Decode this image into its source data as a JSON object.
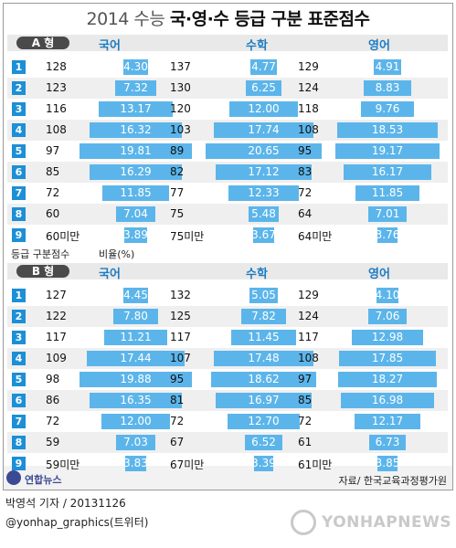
{
  "title": {
    "light": "2014 수능 ",
    "bold": "국·영·수 등급 구분 표준점수"
  },
  "chart_data": {
    "type": "bar",
    "title": "2014 수능 국·영·수 등급 구분 표준점수",
    "grades": [
      "1",
      "2",
      "3",
      "4",
      "5",
      "6",
      "7",
      "8",
      "9"
    ],
    "subjects": [
      "국어",
      "수학",
      "영어"
    ],
    "axis_labels": {
      "score": "등급 구분점수",
      "ratio": "비율(%)"
    },
    "sections": [
      {
        "name": "A 형",
        "subjects": [
          {
            "name": "국어",
            "scores": [
              "128",
              "123",
              "116",
              "108",
              "97",
              "85",
              "72",
              "60",
              "60미만"
            ],
            "values": [
              4.3,
              7.32,
              13.17,
              16.32,
              19.81,
              16.29,
              11.85,
              7.04,
              3.89
            ]
          },
          {
            "name": "수학",
            "scores": [
              "137",
              "130",
              "120",
              "103",
              "89",
              "82",
              "77",
              "75",
              "75미만"
            ],
            "values": [
              4.77,
              6.25,
              12.0,
              17.74,
              20.65,
              17.12,
              12.33,
              5.48,
              3.67
            ]
          },
          {
            "name": "영어",
            "scores": [
              "129",
              "124",
              "118",
              "108",
              "95",
              "83",
              "72",
              "64",
              "64미만"
            ],
            "values": [
              4.91,
              8.83,
              9.76,
              18.53,
              19.17,
              16.17,
              11.85,
              7.01,
              3.76
            ]
          }
        ]
      },
      {
        "name": "B 형",
        "subjects": [
          {
            "name": "국어",
            "scores": [
              "127",
              "122",
              "117",
              "109",
              "98",
              "86",
              "72",
              "59",
              "59미만"
            ],
            "values": [
              4.45,
              7.8,
              11.21,
              17.44,
              19.88,
              16.35,
              12.0,
              7.03,
              3.83
            ]
          },
          {
            "name": "수학",
            "scores": [
              "132",
              "125",
              "117",
              "107",
              "95",
              "81",
              "72",
              "67",
              "67미만"
            ],
            "values": [
              5.05,
              7.82,
              11.45,
              17.48,
              18.62,
              16.97,
              12.7,
              6.52,
              3.39
            ]
          },
          {
            "name": "영어",
            "scores": [
              "129",
              "124",
              "117",
              "108",
              "97",
              "85",
              "72",
              "61",
              "61미만"
            ],
            "values": [
              4.1,
              7.06,
              12.98,
              17.85,
              18.27,
              16.98,
              12.17,
              6.73,
              3.85
            ]
          }
        ]
      }
    ]
  },
  "footer": {
    "logo": "연합뉴스",
    "source": "자료/ 한국교육과정평가원"
  },
  "credit": {
    "author": "박영석 기자 / 20131126",
    "handle": "@yonhap_graphics(트위터)"
  },
  "watermark": "YONHAPNEWS",
  "colors": {
    "bar": "#5cb5ea",
    "rank": "#1d8fd6",
    "subject": "#1c7cc2"
  }
}
